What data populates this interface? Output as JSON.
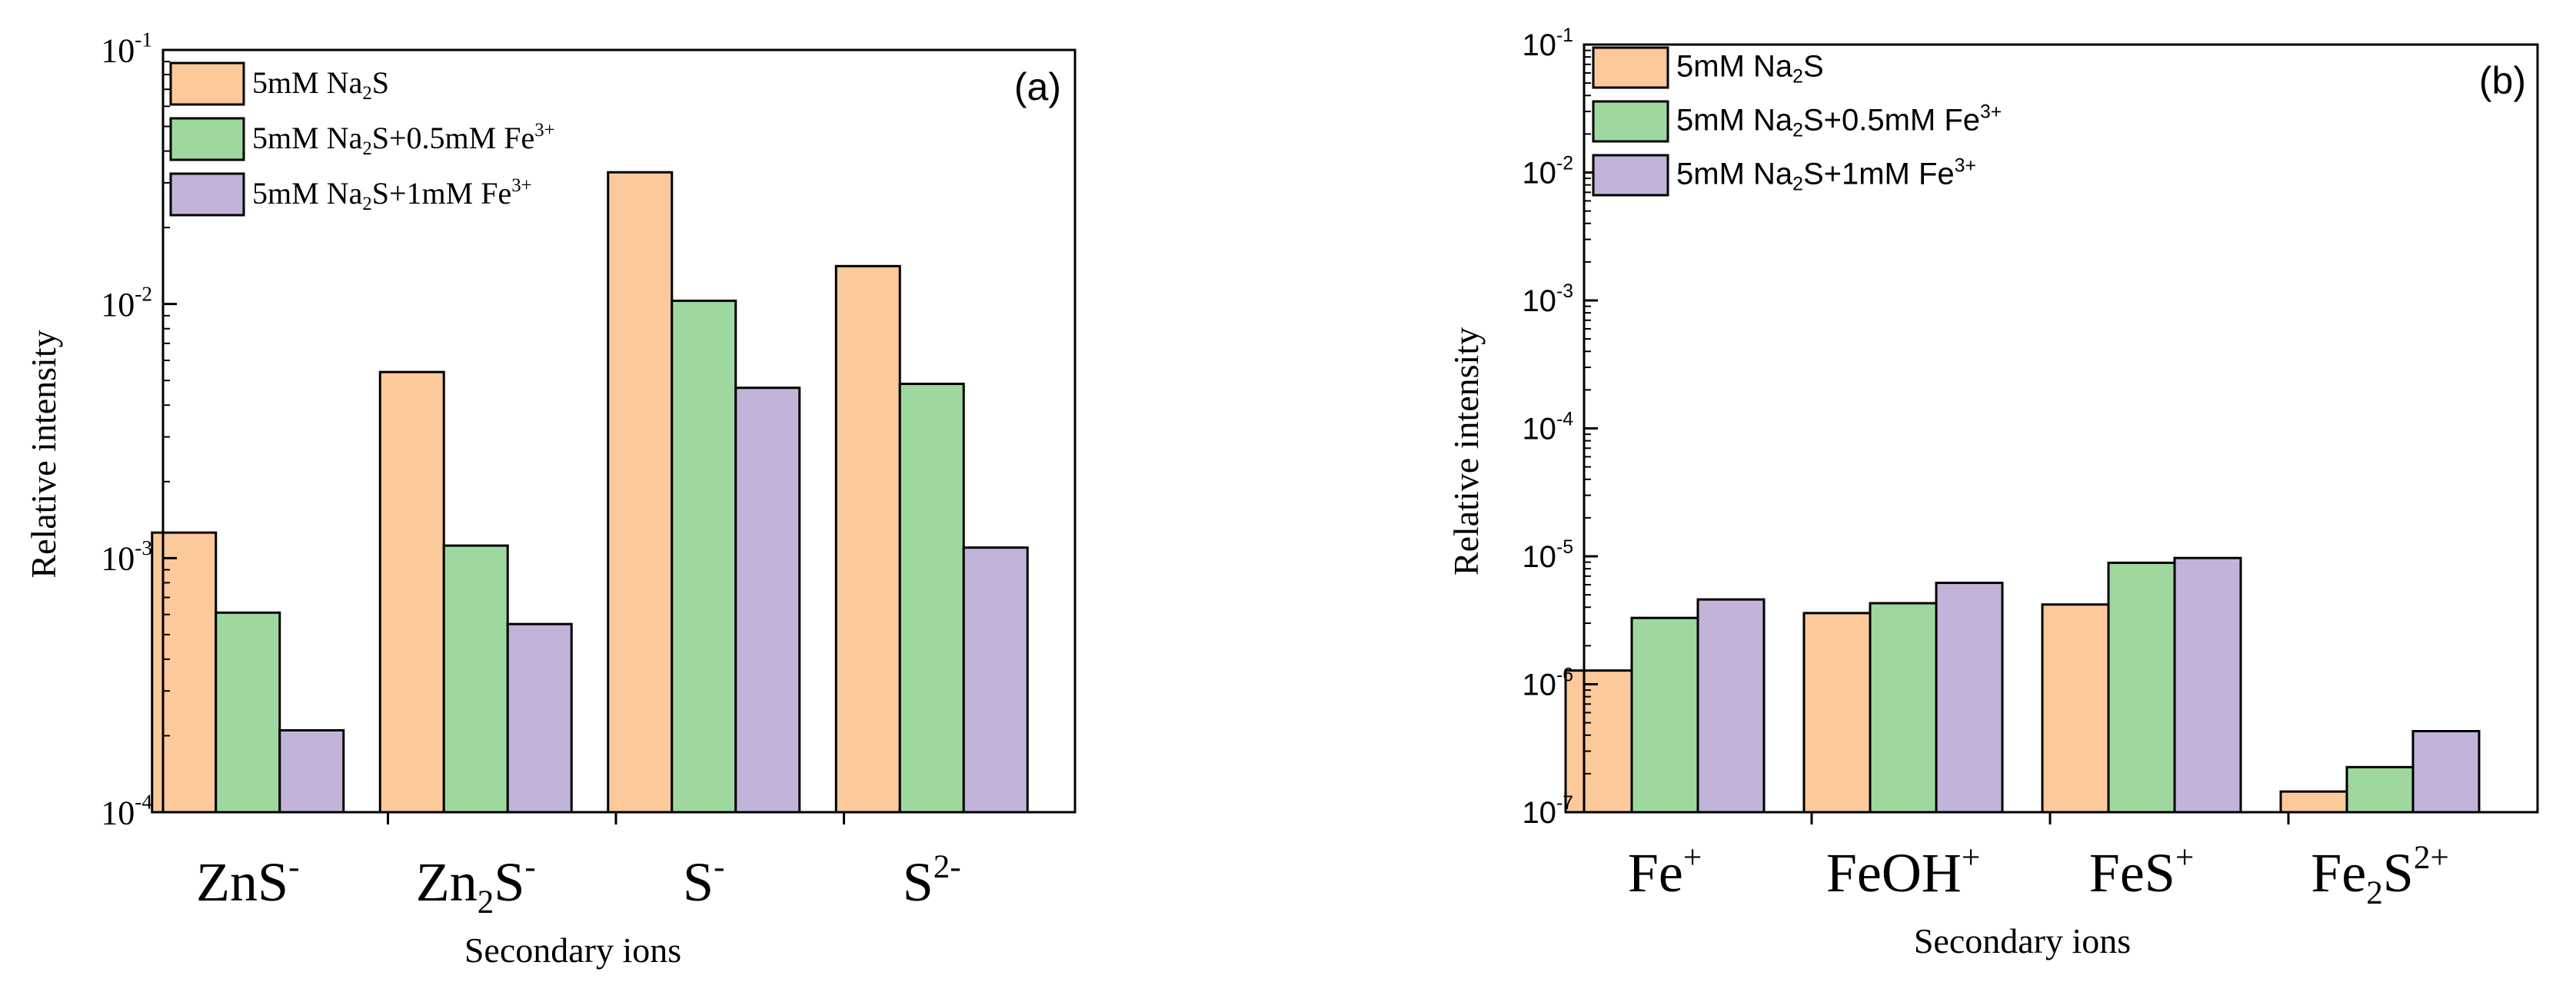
{
  "colors": {
    "series": [
      "#FCC99B",
      "#9ED89E",
      "#C2B3D9"
    ],
    "stroke": "#000000",
    "background": "#FFFFFF"
  },
  "chart_data": [
    {
      "type": "bar",
      "panel_label": "(a)",
      "font": "serif",
      "yscale": "log",
      "ylim": [
        0.0001,
        0.1
      ],
      "ylabel": "Relative intensity",
      "xlabel": "Secondary ions",
      "yticks": [
        {
          "base": "10",
          "exp": "-4"
        },
        {
          "base": "10",
          "exp": "-3"
        },
        {
          "base": "10",
          "exp": "-2"
        },
        {
          "base": "10",
          "exp": "-1"
        }
      ],
      "categories": [
        {
          "base": "ZnS",
          "sup": "-"
        },
        {
          "base": "Zn",
          "sub": "2",
          "base2": "S",
          "sup": "-"
        },
        {
          "base": "S",
          "sup": "-"
        },
        {
          "base": "S",
          "sup": "2-"
        }
      ],
      "series": [
        {
          "name": "5mM Na2S",
          "label": {
            "a": "5mM Na",
            "sub": "2",
            "b": "S"
          },
          "values": [
            0.00126,
            0.0054,
            0.033,
            0.0141
          ]
        },
        {
          "name": "5mM Na2S+0.5mM Fe3+",
          "label": {
            "a": "5mM Na",
            "sub": "2",
            "b": "S+0.5mM Fe",
            "sup": "3+"
          },
          "values": [
            0.00061,
            0.00112,
            0.0103,
            0.00485
          ]
        },
        {
          "name": "5mM Na2S+1mM Fe3+",
          "label": {
            "a": "5mM Na",
            "sub": "2",
            "b": "S+1mM Fe",
            "sup": "3+"
          },
          "values": [
            0.00021,
            0.00055,
            0.00468,
            0.0011
          ]
        }
      ],
      "legend_position": "top-left"
    },
    {
      "type": "bar",
      "panel_label": "(b)",
      "font": "sans",
      "yscale": "log",
      "ylim": [
        1e-07,
        0.1
      ],
      "ylabel": "Relative intensity",
      "xlabel": "Secondary ions",
      "yticks": [
        {
          "base": "10",
          "exp": "-7"
        },
        {
          "base": "10",
          "exp": "-6"
        },
        {
          "base": "10",
          "exp": "-5"
        },
        {
          "base": "10",
          "exp": "-4"
        },
        {
          "base": "10",
          "exp": "-3"
        },
        {
          "base": "10",
          "exp": "-2"
        },
        {
          "base": "10",
          "exp": "-1"
        }
      ],
      "categories": [
        {
          "base": "Fe",
          "sup": "+"
        },
        {
          "base": "FeOH",
          "sup": "+"
        },
        {
          "base": "FeS",
          "sup": "+"
        },
        {
          "base": "Fe",
          "sub": "2",
          "base2": "S",
          "sup": "2+"
        }
      ],
      "series": [
        {
          "name": "5mM Na2S",
          "label": {
            "a": "5mM Na",
            "sub": "2",
            "b": "S"
          },
          "values": [
            1.28e-06,
            3.6e-06,
            4.2e-06,
            1.45e-07
          ]
        },
        {
          "name": "5mM Na2S+0.5mM Fe3+",
          "label": {
            "a": "5mM Na",
            "sub": "2",
            "b": "S+0.5mM Fe",
            "sup": "3+"
          },
          "values": [
            3.3e-06,
            4.3e-06,
            8.9e-06,
            2.25e-07
          ]
        },
        {
          "name": "5mM Na2S+1mM Fe3+",
          "label": {
            "a": "5mM Na",
            "sub": "2",
            "b": "S+1mM Fe",
            "sup": "3+"
          },
          "values": [
            4.6e-06,
            6.2e-06,
            9.7e-06,
            4.3e-07
          ]
        }
      ],
      "legend_position": "top-left"
    }
  ]
}
